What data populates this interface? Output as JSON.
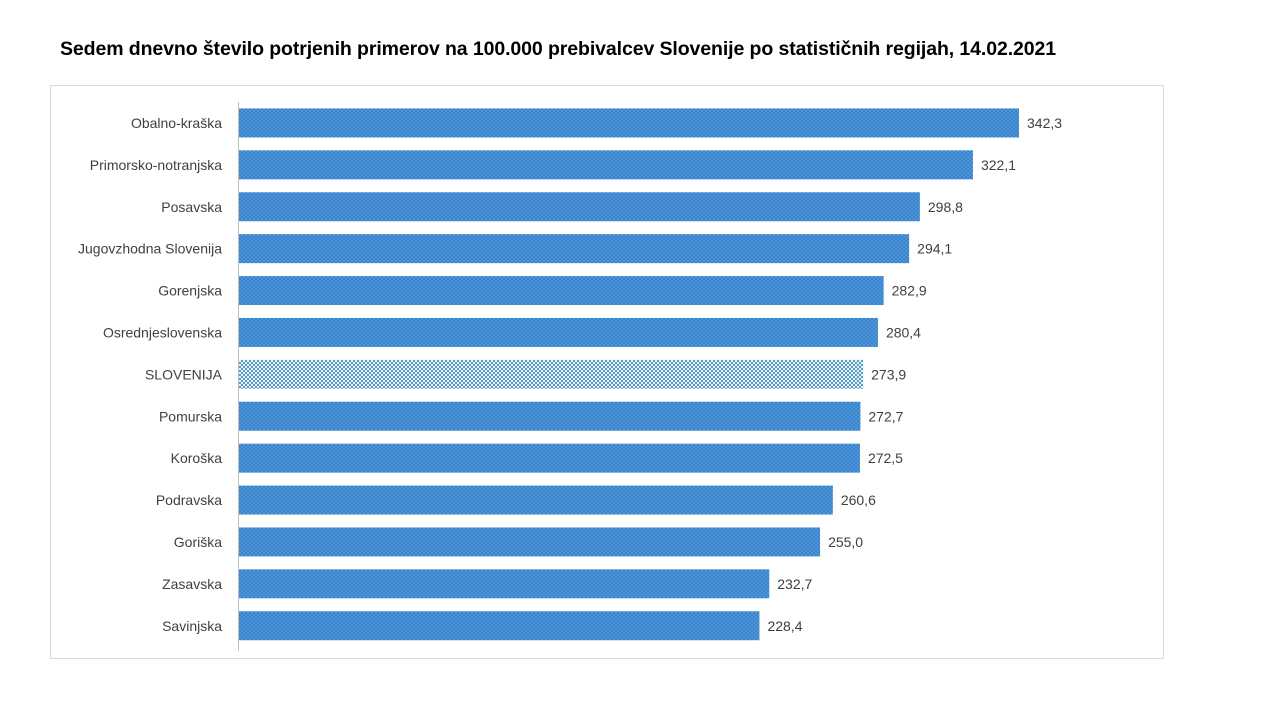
{
  "chart_data": {
    "type": "bar",
    "orientation": "horizontal",
    "title": "Sedem dnevno število potrjenih primerov na 100.000  prebivalcev Slovenije po statističnih regijah, 14.02.2021",
    "categories": [
      "Obalno-kraška",
      "Primorsko-notranjska",
      "Posavska",
      "Jugovzhodna Slovenija",
      "Gorenjska",
      "Osrednjeslovenska",
      "SLOVENIJA",
      "Pomurska",
      "Koroška",
      "Podravska",
      "Goriška",
      "Zasavska",
      "Savinjska"
    ],
    "values": [
      342.3,
      322.1,
      298.8,
      294.1,
      282.9,
      280.4,
      273.9,
      272.7,
      272.5,
      260.6,
      255.0,
      232.7,
      228.4
    ],
    "value_labels": [
      "342,3",
      "322,1",
      "298,8",
      "294,1",
      "282,9",
      "280,4",
      "273,9",
      "272,7",
      "272,5",
      "260,6",
      "255,0",
      "232,7",
      "228,4"
    ],
    "highlight_category": "SLOVENIJA",
    "xlim": [
      0,
      390
    ],
    "grid": false,
    "legend": "none",
    "colors": {
      "bar": "#3f8fd9",
      "bar_dots": "#2a6fb3",
      "highlight": "#ffffff",
      "highlight_dots": "#2f7fb0"
    }
  }
}
